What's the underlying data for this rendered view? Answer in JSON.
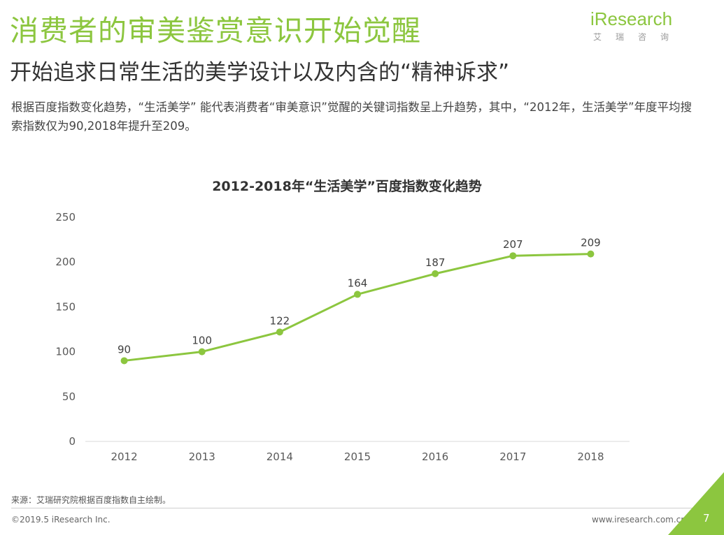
{
  "header": {
    "title": "消费者的审美鉴赏意识开始觉醒",
    "subtitle": "开始追求日常生活的美学设计以及内含的“精神诉求”",
    "description": "根据百度指数变化趋势，“生活美学” 能代表消费者“审美意识”觉醒的关键词指数呈上升趋势，其中，“2012年，生活美学”年度平均搜索指数仅为90,2018年提升至209。"
  },
  "logo": {
    "main": "iResearch",
    "sub": "艾瑞咨询"
  },
  "footer": {
    "source": "来源：艾瑞研究院根据百度指数自主绘制。",
    "copyright": "©2019.5 iResearch Inc.",
    "website": "www.iresearch.com.cn",
    "page": "7"
  },
  "colors": {
    "accent": "#8cc63f",
    "corner": "#8cc63f"
  },
  "chart_data": {
    "type": "line",
    "title": "2012-2018年“生活美学”百度指数变化趋势",
    "categories": [
      "2012",
      "2013",
      "2014",
      "2015",
      "2016",
      "2017",
      "2018"
    ],
    "values": [
      90,
      100,
      122,
      164,
      187,
      207,
      209
    ],
    "ylim": [
      0,
      250
    ],
    "yticks": [
      0,
      50,
      100,
      150,
      200,
      250
    ],
    "xlabel": "",
    "ylabel": "",
    "grid": false,
    "legend": "none",
    "color": "#8cc63f"
  }
}
